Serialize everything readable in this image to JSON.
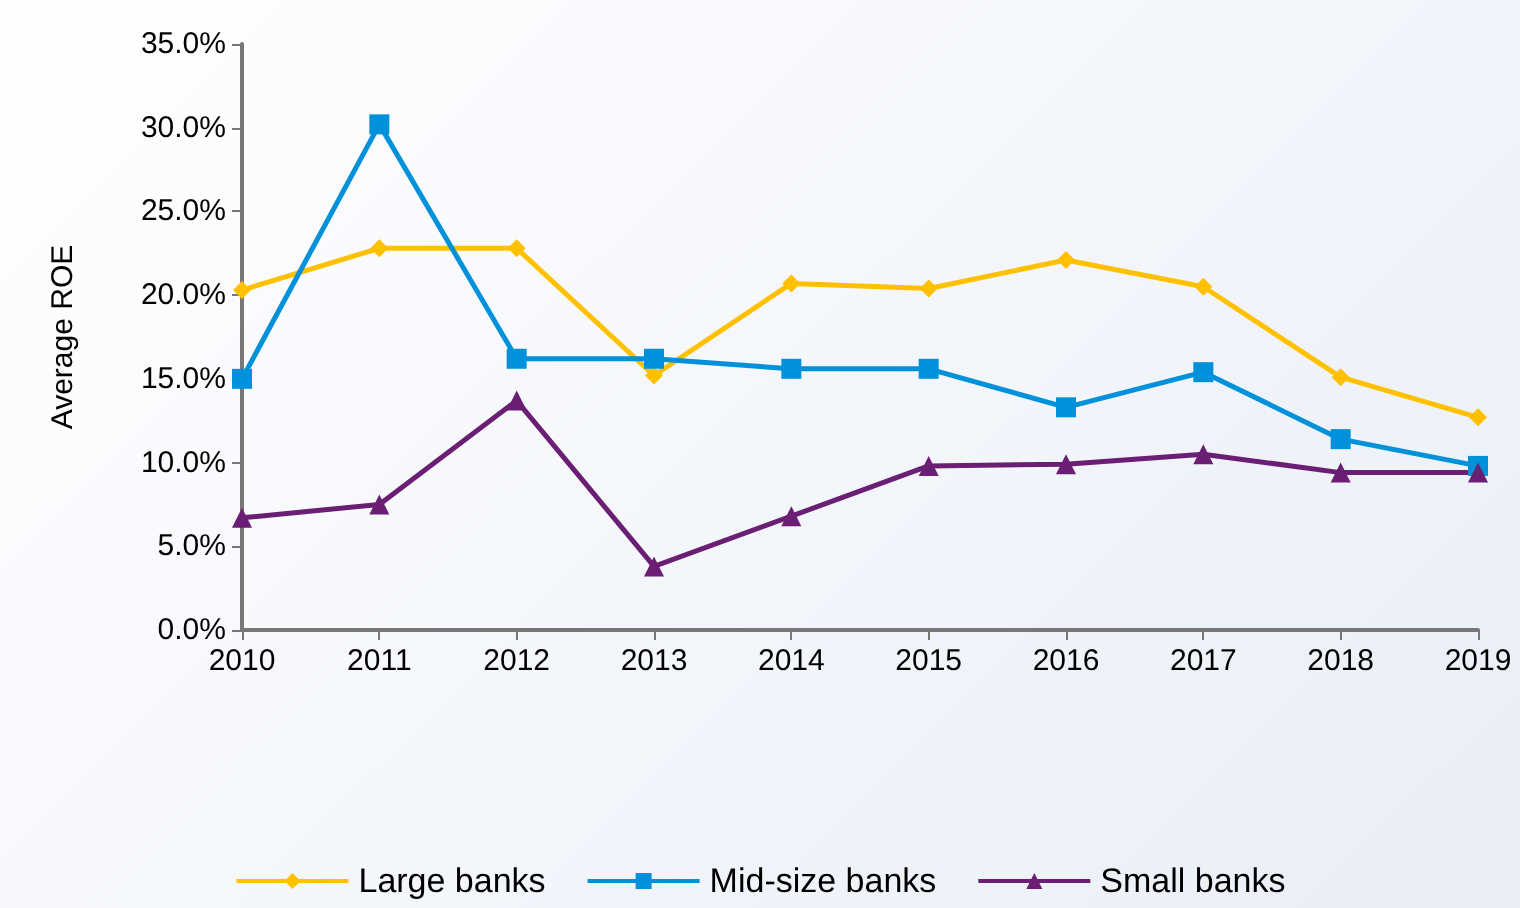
{
  "chart_data": {
    "type": "line",
    "ylabel": "Average ROE",
    "categories": [
      "2010",
      "2011",
      "2012",
      "2013",
      "2014",
      "2015",
      "2016",
      "2017",
      "2018",
      "2019"
    ],
    "series": [
      {
        "name": "Large banks",
        "color": "#ffc000",
        "marker": "diamond",
        "values": [
          20.3,
          22.8,
          22.8,
          15.2,
          20.7,
          20.4,
          22.1,
          20.5,
          15.1,
          12.7
        ]
      },
      {
        "name": "Mid-size banks",
        "color": "#0091da",
        "marker": "square",
        "values": [
          15.0,
          30.2,
          16.2,
          16.2,
          15.6,
          15.6,
          13.3,
          15.4,
          11.4,
          9.8
        ]
      },
      {
        "name": "Small banks",
        "color": "#6a1e74",
        "marker": "triangle",
        "values": [
          6.7,
          7.5,
          13.7,
          3.8,
          6.8,
          9.8,
          9.9,
          10.5,
          9.4,
          9.4
        ]
      }
    ],
    "ylim": [
      0,
      35
    ],
    "yticks": [
      {
        "value": 0,
        "label": "0.0%"
      },
      {
        "value": 5,
        "label": "5.0%"
      },
      {
        "value": 10,
        "label": "10.0%"
      },
      {
        "value": 15,
        "label": "15.0%"
      },
      {
        "value": 20,
        "label": "20.0%"
      },
      {
        "value": 25,
        "label": "25.0%"
      },
      {
        "value": 30,
        "label": "30.0%"
      },
      {
        "value": 35,
        "label": "35.0%"
      }
    ],
    "grid": false,
    "legend": "bottom"
  }
}
